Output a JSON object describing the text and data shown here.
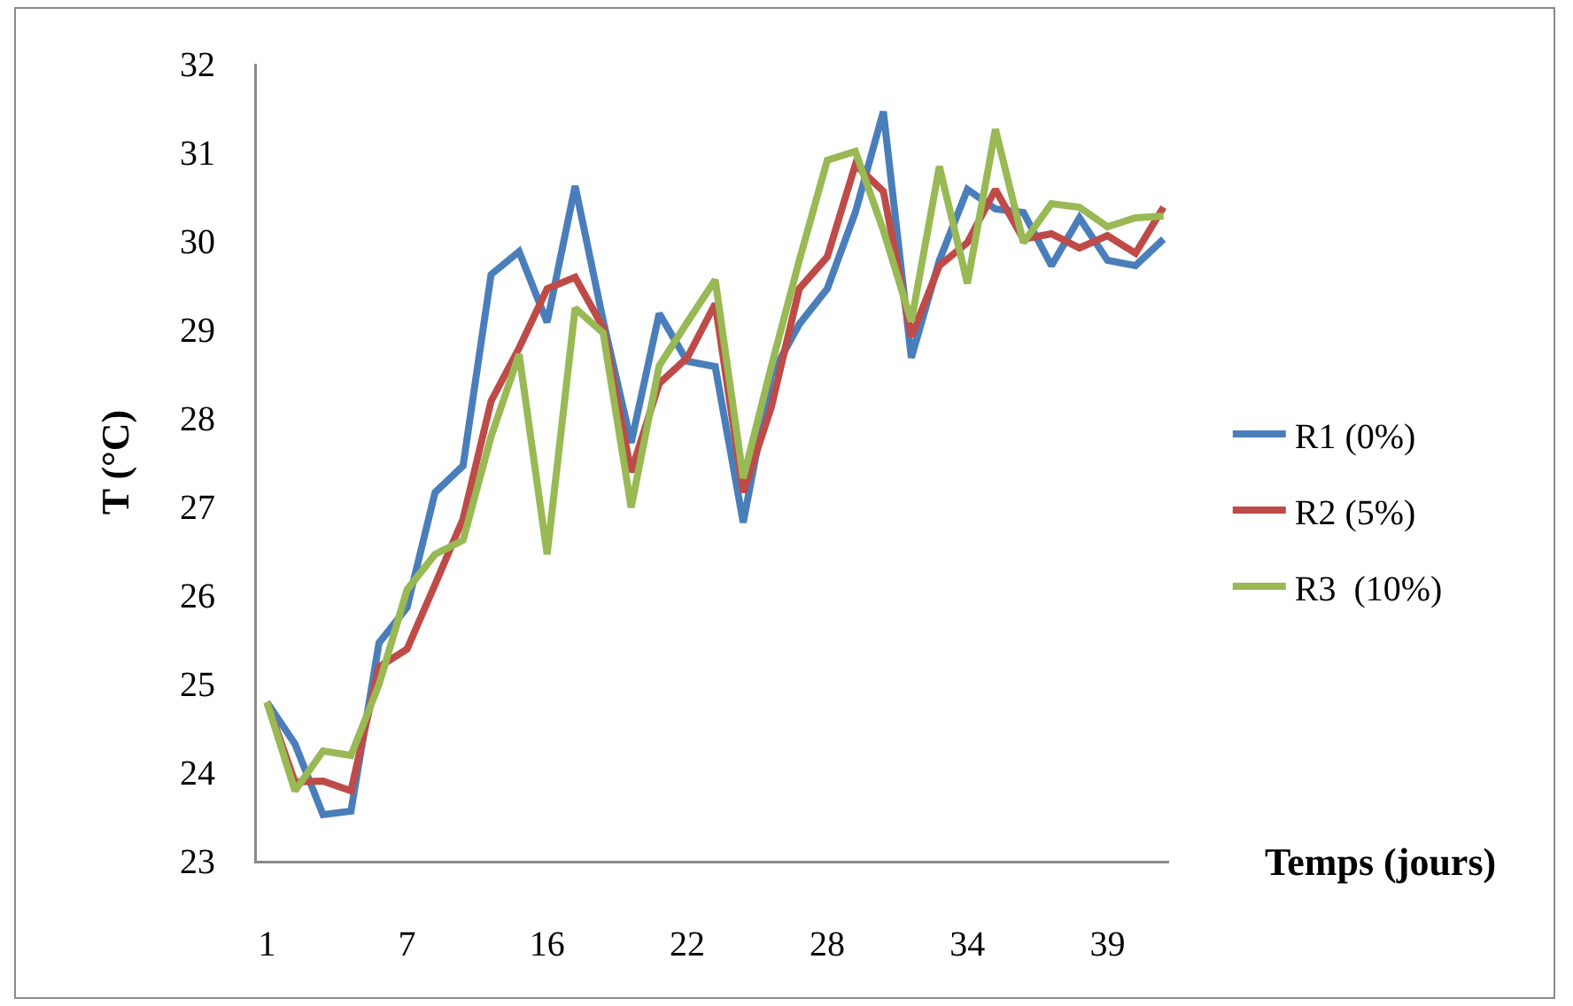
{
  "chart_data": {
    "type": "line",
    "xlabel": "Temps (jours)",
    "ylabel": "T (°C)",
    "categories": [
      "1",
      null,
      null,
      null,
      null,
      "7",
      null,
      null,
      null,
      null,
      "16",
      null,
      null,
      null,
      null,
      "22",
      null,
      null,
      null,
      null,
      "28",
      null,
      null,
      null,
      null,
      "34",
      null,
      null,
      null,
      null,
      "39",
      null,
      null
    ],
    "series": [
      {
        "name": "R1 (0%)",
        "color": "#4a7ebb",
        "values": [
          24.79,
          24.32,
          23.52,
          23.56,
          25.46,
          25.86,
          27.16,
          27.46,
          29.62,
          29.88,
          29.08,
          30.62,
          29.1,
          27.72,
          29.18,
          28.64,
          28.58,
          26.82,
          28.48,
          29.06,
          29.46,
          30.32,
          31.46,
          28.68,
          29.78,
          30.58,
          30.36,
          30.32,
          29.72,
          30.26,
          29.78,
          29.72,
          30.02
        ]
      },
      {
        "name": "R2 (5%)",
        "color": "#be4b48",
        "values": [
          24.79,
          23.89,
          23.9,
          23.79,
          25.19,
          25.39,
          26.12,
          26.86,
          28.19,
          28.79,
          29.46,
          29.59,
          29.02,
          27.39,
          28.39,
          28.68,
          29.29,
          27.16,
          28.12,
          29.46,
          29.82,
          30.86,
          30.56,
          28.92,
          29.72,
          29.98,
          30.58,
          30.02,
          30.08,
          29.92,
          30.06,
          29.86,
          30.38
        ]
      },
      {
        "name": "R3  (10%)",
        "color": "#98b954",
        "values": [
          24.79,
          23.79,
          24.24,
          24.19,
          24.99,
          26.06,
          26.46,
          26.62,
          27.79,
          28.72,
          26.46,
          29.24,
          28.96,
          26.99,
          28.59,
          29.08,
          29.56,
          27.32,
          28.58,
          29.78,
          30.91,
          31.01,
          30.12,
          29.09,
          30.84,
          29.52,
          31.26,
          29.98,
          30.42,
          30.38,
          30.16,
          30.26,
          30.28
        ]
      }
    ],
    "ylim": [
      23,
      32
    ],
    "yticks": [
      23,
      24,
      25,
      26,
      27,
      28,
      29,
      30,
      31,
      32
    ],
    "grid": false,
    "legend": "right",
    "marker": "none",
    "line_style": "solid"
  }
}
